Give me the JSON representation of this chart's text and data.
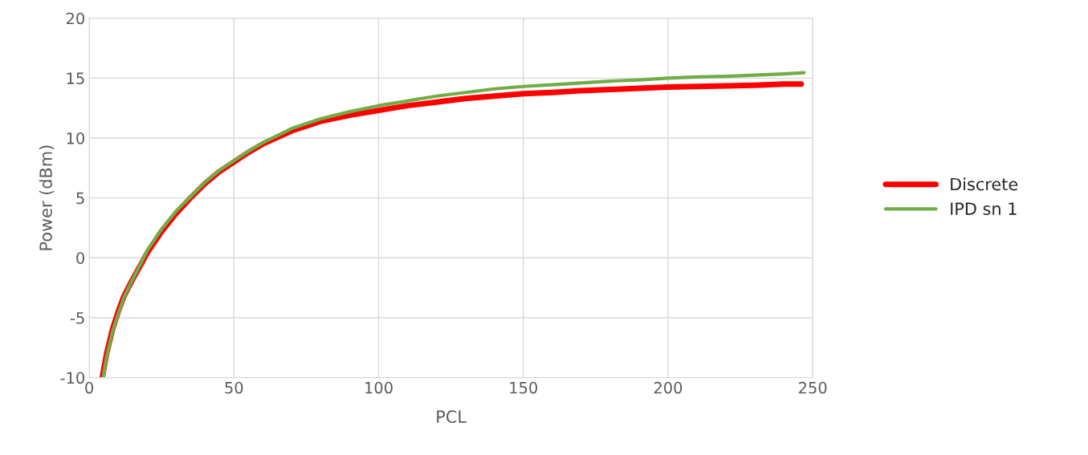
{
  "chart_data": {
    "type": "line",
    "xlabel": "PCL",
    "ylabel": "Power (dBm)",
    "xlim": [
      0,
      250
    ],
    "xticks": [
      0,
      50,
      100,
      150,
      200,
      250
    ],
    "ylim": [
      -10,
      20
    ],
    "yticks": [
      -10,
      -5,
      0,
      5,
      10,
      15,
      20
    ],
    "grid": true,
    "legend": "right",
    "line_style": "solid",
    "marker": "none",
    "series": [
      {
        "name": "Discrete",
        "color": "#ff0000",
        "x": [
          4.5,
          6,
          8,
          10,
          12,
          15,
          18,
          20,
          25,
          30,
          35,
          40,
          45,
          50,
          55,
          60,
          70,
          80,
          90,
          100,
          110,
          120,
          130,
          140,
          150,
          160,
          170,
          180,
          190,
          200,
          210,
          220,
          230,
          240,
          246
        ],
        "values": [
          -10,
          -8,
          -6,
          -4.5,
          -3.2,
          -1.8,
          -0.5,
          0.4,
          2.2,
          3.7,
          5,
          6.2,
          7.2,
          8,
          8.8,
          9.5,
          10.6,
          11.4,
          11.9,
          12.3,
          12.7,
          13,
          13.3,
          13.5,
          13.7,
          13.8,
          13.95,
          14.05,
          14.15,
          14.25,
          14.3,
          14.35,
          14.4,
          14.5,
          14.5
        ]
      },
      {
        "name": "IPD sn 1",
        "color": "#70ad47",
        "x": [
          4.8,
          6,
          8,
          10,
          12,
          15,
          18,
          20,
          25,
          30,
          35,
          40,
          45,
          50,
          55,
          60,
          70,
          80,
          90,
          100,
          110,
          120,
          130,
          140,
          150,
          160,
          170,
          180,
          190,
          200,
          210,
          220,
          230,
          240,
          247
        ],
        "values": [
          -10,
          -8.3,
          -6.2,
          -4.7,
          -3.3,
          -1.8,
          -0.4,
          0.6,
          2.4,
          3.9,
          5.1,
          6.3,
          7.3,
          8.1,
          8.9,
          9.6,
          10.8,
          11.6,
          12.2,
          12.7,
          13.1,
          13.5,
          13.8,
          14.1,
          14.3,
          14.45,
          14.6,
          14.75,
          14.85,
          15,
          15.1,
          15.15,
          15.25,
          15.35,
          15.45
        ]
      }
    ]
  }
}
